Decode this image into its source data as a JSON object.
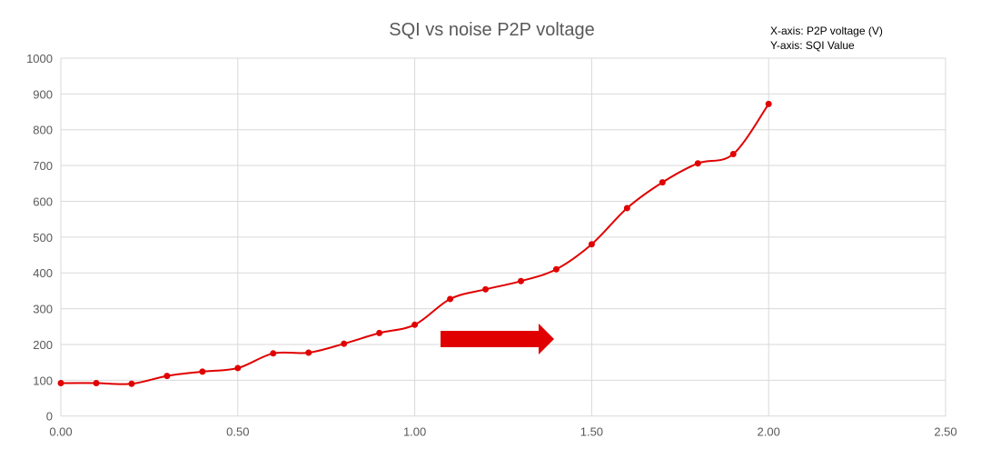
{
  "chart_data": {
    "type": "line",
    "title": "SQI vs noise P2P voltage",
    "annotations": [
      "X-axis: P2P voltage (V)",
      "Y-axis: SQI Value"
    ],
    "xlabel": "",
    "ylabel": "",
    "xlim": [
      0,
      2.5
    ],
    "ylim": [
      0,
      1000
    ],
    "xticks": [
      "0.00",
      "0.50",
      "1.00",
      "1.50",
      "2.00",
      "2.50"
    ],
    "yticks": [
      "0",
      "100",
      "200",
      "300",
      "400",
      "500",
      "600",
      "700",
      "800",
      "900",
      "1000"
    ],
    "grid": true,
    "smooth": true,
    "series": [
      {
        "color": "#e00000",
        "x": [
          0,
          0.1,
          0.2,
          0.3,
          0.4,
          0.5,
          0.6,
          0.7,
          0.8,
          0.9,
          1.0,
          1.1,
          1.2,
          1.3,
          1.4,
          1.5,
          1.6,
          1.7,
          1.8,
          1.9,
          2.0
        ],
        "y": [
          92,
          92,
          90,
          112,
          124,
          134,
          175,
          177,
          202,
          232,
          255,
          327,
          354,
          377,
          410,
          480,
          581,
          653,
          706,
          732,
          872
        ]
      }
    ],
    "arrow": {
      "color": "#e00000",
      "direction": "right"
    }
  }
}
